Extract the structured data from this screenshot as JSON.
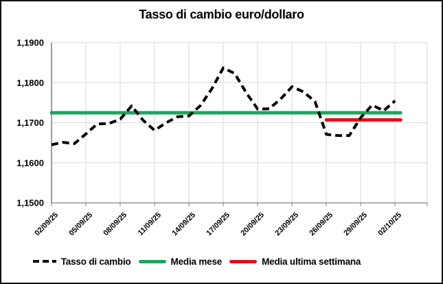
{
  "window": {
    "background": "#ffffff",
    "border_color": "#111111"
  },
  "chart_data": {
    "type": "line",
    "title": "Tasso di cambio euro/dollaro",
    "xlabel": "",
    "ylabel": "",
    "ylim": [
      1.15,
      1.19
    ],
    "grid": true,
    "legend_position": "bottom",
    "gridline_color": "#d9d9d9",
    "axis_color": "#808080",
    "y_ticks": [
      "1,1900",
      "1,1800",
      "1,1700",
      "1,1600",
      "1,1500"
    ],
    "y_tick_values": [
      1.19,
      1.18,
      1.17,
      1.16,
      1.15
    ],
    "x_tick_labels": [
      "02/09/25",
      "05/09/25",
      "08/09/25",
      "11/09/25",
      "14/09/25",
      "17/09/25",
      "20/09/25",
      "23/09/25",
      "26/09/25",
      "29/09/25",
      "02/10/25"
    ],
    "x": [
      "02/09/25",
      "03/09/25",
      "04/09/25",
      "05/09/25",
      "06/09/25",
      "07/09/25",
      "08/09/25",
      "09/09/25",
      "10/09/25",
      "11/09/25",
      "12/09/25",
      "13/09/25",
      "14/09/25",
      "15/09/25",
      "16/09/25",
      "17/09/25",
      "18/09/25",
      "19/09/25",
      "20/09/25",
      "21/09/25",
      "22/09/25",
      "23/09/25",
      "24/09/25",
      "25/09/25",
      "26/09/25",
      "27/09/25",
      "28/09/25",
      "29/09/25",
      "30/09/25",
      "01/10/25",
      "02/10/25"
    ],
    "series": [
      {
        "name": "Tasso di cambio",
        "kind": "line",
        "style": "dashed",
        "color": "#000000",
        "values": [
          1.1645,
          1.1651,
          1.1648,
          1.1672,
          1.1697,
          1.1698,
          1.1709,
          1.1742,
          1.1706,
          1.1681,
          1.17,
          1.1715,
          1.1717,
          1.1743,
          1.1785,
          1.1837,
          1.1823,
          1.1775,
          1.1734,
          1.1735,
          1.1759,
          1.179,
          1.1777,
          1.1753,
          1.1671,
          1.1668,
          1.1668,
          1.1713,
          1.1744,
          1.173,
          1.1755
        ]
      },
      {
        "name": "Media mese",
        "kind": "hline",
        "style": "solid",
        "color": "#1ea45c",
        "value": 1.1725,
        "x_span": [
          0,
          30
        ]
      },
      {
        "name": "Media ultima settimana",
        "kind": "hline",
        "style": "solid",
        "color": "#e0111a",
        "value": 1.1707,
        "x_span": [
          24,
          30
        ]
      }
    ]
  }
}
